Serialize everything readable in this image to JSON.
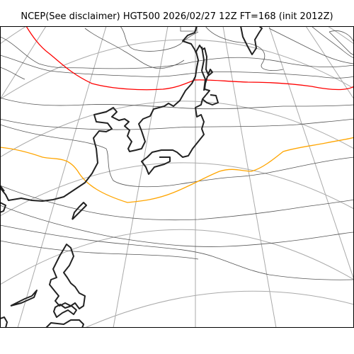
{
  "title": "NCEP(See disclaimer) HGT500 2026/02/27 12Z FT=168 (init 2012Z)",
  "colors": {
    "background": "#ffffff",
    "graticule": "#aaaaaa",
    "contour": "#555555",
    "coastline": "#222222",
    "contour_5400": "#ff0000",
    "contour_5700": "#ffa500"
  }
}
